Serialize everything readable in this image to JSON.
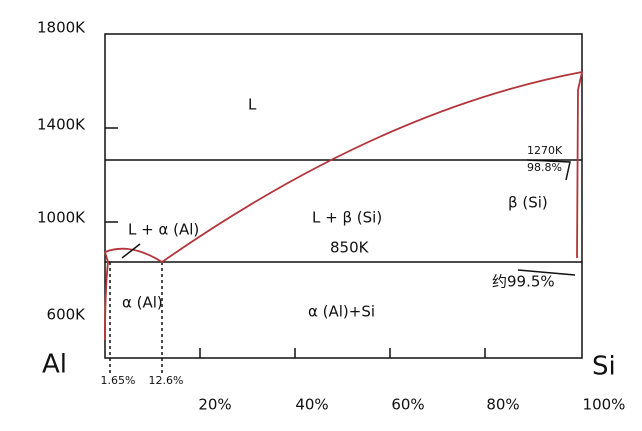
{
  "y_axis": {
    "labels": [
      "1800K",
      "1400K",
      "1000K",
      "600K"
    ]
  },
  "x_axis": {
    "start": "Al",
    "end": "Si",
    "labels": [
      "20%",
      "40%",
      "60%",
      "80%",
      "100%"
    ],
    "markers": [
      "1.65%",
      "12.6%"
    ]
  },
  "regions": [
    "L",
    "L + α (Al)",
    "L + β (Si)",
    "α (Al)",
    "α (Al)+Si",
    "β (Si)"
  ],
  "annotations": [
    "850K",
    "1270K",
    "98.8%",
    "约99.5%"
  ]
}
